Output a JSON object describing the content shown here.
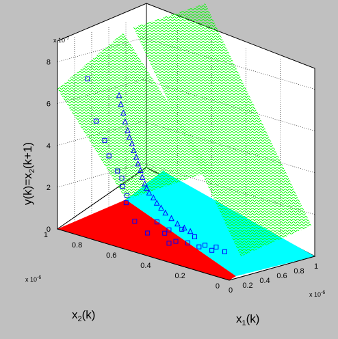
{
  "chart_data": {
    "type": "scatter",
    "view": "3d-surface-plot",
    "title": "",
    "xlabel": {
      "main": "x",
      "sub": "1",
      "rest": "(k)"
    },
    "ylabel": {
      "main": "x",
      "sub": "2",
      "rest": "(k)"
    },
    "zlabel": {
      "main": "y(k)=x",
      "sub": "2",
      "rest": "(k+1)"
    },
    "x_multiplier": "x 10",
    "x_exponent": "-6",
    "y_multiplier": "x 10",
    "y_exponent": "-6",
    "z_multiplier": "x 10",
    "z_exponent": "-7",
    "xlim": [
      0,
      1
    ],
    "ylim": [
      0,
      1
    ],
    "zlim": [
      0,
      9
    ],
    "x_ticks": [
      "0",
      "0.2",
      "0.4",
      "0.6",
      "0.8",
      "1"
    ],
    "y_ticks": [
      "0",
      "0.2",
      "0.4",
      "0.6",
      "0.8",
      "1"
    ],
    "z_ticks": [
      "0",
      "2",
      "4",
      "6",
      "8"
    ],
    "grid": true,
    "surface_color": "#00ff00",
    "floor_regions": [
      {
        "name": "region-red",
        "color": "#ff0000"
      },
      {
        "name": "region-cyan",
        "color": "#00ffff"
      }
    ],
    "series": [
      {
        "marker": "square",
        "color": "#0000ff",
        "points": [
          {
            "x": 0.05,
            "y": 0.85,
            "z": 7.5
          },
          {
            "x": 0.05,
            "y": 0.8,
            "z": 5.6
          },
          {
            "x": 0.05,
            "y": 0.75,
            "z": 4.8
          },
          {
            "x": 0.1,
            "y": 0.75,
            "z": 4.0
          },
          {
            "x": 0.1,
            "y": 0.7,
            "z": 3.4
          },
          {
            "x": 0.15,
            "y": 0.7,
            "z": 3.0
          },
          {
            "x": 0.1,
            "y": 0.65,
            "z": 2.0
          },
          {
            "x": 0.2,
            "y": 0.72,
            "z": 2.5
          },
          {
            "x": 0.25,
            "y": 0.72,
            "z": 2.0
          },
          {
            "x": 0.2,
            "y": 0.65,
            "z": 1.0
          },
          {
            "x": 0.25,
            "y": 0.6,
            "z": 0.5
          },
          {
            "x": 0.32,
            "y": 0.58,
            "z": 1.0
          },
          {
            "x": 0.35,
            "y": 0.55,
            "z": 0.5
          },
          {
            "x": 0.3,
            "y": 0.5,
            "z": 0.2
          },
          {
            "x": 0.4,
            "y": 0.55,
            "z": 0.6
          },
          {
            "x": 0.38,
            "y": 0.5,
            "z": 0.2
          },
          {
            "x": 0.45,
            "y": 0.5,
            "z": 0.7
          },
          {
            "x": 0.42,
            "y": 0.45,
            "z": 0.2
          },
          {
            "x": 0.5,
            "y": 0.45,
            "z": 0.4
          },
          {
            "x": 0.45,
            "y": 0.4,
            "z": 0.1
          },
          {
            "x": 0.52,
            "y": 0.4,
            "z": 0.1
          },
          {
            "x": 0.55,
            "y": 0.35,
            "z": 0.1
          },
          {
            "x": 0.5,
            "y": 0.35,
            "z": 0.0
          },
          {
            "x": 0.55,
            "y": 0.3,
            "z": 0.0
          }
        ]
      },
      {
        "marker": "triangle",
        "color": "#0000ff",
        "points": [
          {
            "x": 0.62,
            "y": 0.95,
            "z": 5.8
          },
          {
            "x": 0.62,
            "y": 0.94,
            "z": 5.4
          },
          {
            "x": 0.63,
            "y": 0.93,
            "z": 5.0
          },
          {
            "x": 0.63,
            "y": 0.92,
            "z": 4.6
          },
          {
            "x": 0.64,
            "y": 0.91,
            "z": 4.2
          },
          {
            "x": 0.64,
            "y": 0.9,
            "z": 3.9
          },
          {
            "x": 0.65,
            "y": 0.89,
            "z": 3.6
          },
          {
            "x": 0.65,
            "y": 0.88,
            "z": 3.3
          },
          {
            "x": 0.66,
            "y": 0.87,
            "z": 3.0
          },
          {
            "x": 0.66,
            "y": 0.86,
            "z": 2.7
          },
          {
            "x": 0.67,
            "y": 0.85,
            "z": 2.4
          },
          {
            "x": 0.67,
            "y": 0.84,
            "z": 2.1
          },
          {
            "x": 0.68,
            "y": 0.83,
            "z": 1.8
          },
          {
            "x": 0.68,
            "y": 0.82,
            "z": 1.6
          },
          {
            "x": 0.69,
            "y": 0.81,
            "z": 1.4
          },
          {
            "x": 0.7,
            "y": 0.79,
            "z": 1.2
          },
          {
            "x": 0.7,
            "y": 0.77,
            "z": 1.0
          },
          {
            "x": 0.71,
            "y": 0.75,
            "z": 0.8
          },
          {
            "x": 0.72,
            "y": 0.73,
            "z": 0.6
          },
          {
            "x": 0.73,
            "y": 0.7,
            "z": 0.4
          },
          {
            "x": 0.74,
            "y": 0.67,
            "z": 0.2
          },
          {
            "x": 0.74,
            "y": 0.63,
            "z": 0.1
          },
          {
            "x": 0.75,
            "y": 0.6,
            "z": 0.0
          }
        ]
      }
    ]
  }
}
